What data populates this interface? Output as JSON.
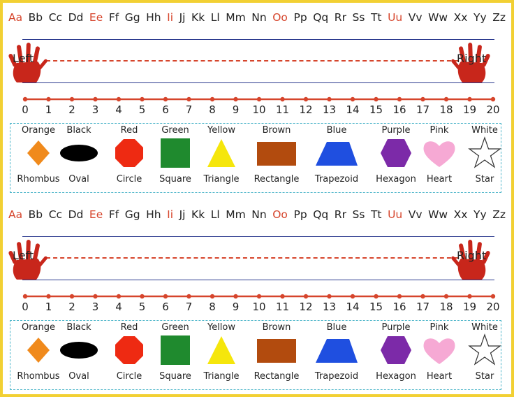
{
  "alphabet": [
    {
      "text": "Aa",
      "color": "#d6452c"
    },
    {
      "text": "Bb",
      "color": "#222222"
    },
    {
      "text": "Cc",
      "color": "#222222"
    },
    {
      "text": "Dd",
      "color": "#222222"
    },
    {
      "text": "Ee",
      "color": "#d6452c"
    },
    {
      "text": "Ff",
      "color": "#222222"
    },
    {
      "text": "Gg",
      "color": "#222222"
    },
    {
      "text": "Hh",
      "color": "#222222"
    },
    {
      "text": "Ii",
      "color": "#d6452c"
    },
    {
      "text": "Jj",
      "color": "#222222"
    },
    {
      "text": "Kk",
      "color": "#222222"
    },
    {
      "text": "Ll",
      "color": "#222222"
    },
    {
      "text": "Mm",
      "color": "#222222"
    },
    {
      "text": "Nn",
      "color": "#222222"
    },
    {
      "text": "Oo",
      "color": "#d6452c"
    },
    {
      "text": "Pp",
      "color": "#222222"
    },
    {
      "text": "Qq",
      "color": "#222222"
    },
    {
      "text": "Rr",
      "color": "#222222"
    },
    {
      "text": "Ss",
      "color": "#222222"
    },
    {
      "text": "Tt",
      "color": "#222222"
    },
    {
      "text": "Uu",
      "color": "#d6452c"
    },
    {
      "text": "Vv",
      "color": "#222222"
    },
    {
      "text": "Ww",
      "color": "#222222"
    },
    {
      "text": "Xx",
      "color": "#222222"
    },
    {
      "text": "Yy",
      "color": "#222222"
    },
    {
      "text": "Zz",
      "color": "#222222"
    }
  ],
  "hands": {
    "left": "Left",
    "right": "Right"
  },
  "number_line": [
    "0",
    "1",
    "2",
    "3",
    "4",
    "5",
    "6",
    "7",
    "8",
    "9",
    "10",
    "11",
    "12",
    "13",
    "14",
    "15",
    "16",
    "17",
    "18",
    "19",
    "20"
  ],
  "shapes": [
    {
      "color_name": "Orange",
      "shape_name": "Rhombus",
      "shape": "rhombus",
      "fill": "#f08a1c"
    },
    {
      "color_name": "Black",
      "shape_name": "Oval",
      "shape": "oval",
      "fill": "#000000"
    },
    {
      "color_name": "Red",
      "shape_name": "Circle",
      "shape": "circle",
      "fill": "#ee2a12"
    },
    {
      "color_name": "Green",
      "shape_name": "Square",
      "shape": "square",
      "fill": "#1f8a2e"
    },
    {
      "color_name": "Yellow",
      "shape_name": "Triangle",
      "shape": "triangle",
      "fill": "#f5e60c"
    },
    {
      "color_name": "Brown",
      "shape_name": "Rectangle",
      "shape": "rectangle",
      "fill": "#b24b0e"
    },
    {
      "color_name": "Blue",
      "shape_name": "Trapezoid",
      "shape": "trapezoid",
      "fill": "#1f4fe0"
    },
    {
      "color_name": "Purple",
      "shape_name": "Hexagon",
      "shape": "hexagon",
      "fill": "#7c2aa8"
    },
    {
      "color_name": "Pink",
      "shape_name": "Heart",
      "shape": "heart",
      "fill": "#f6a9d4"
    },
    {
      "color_name": "White",
      "shape_name": "Star",
      "shape": "star",
      "fill": "#ffffff"
    }
  ],
  "colors": {
    "accent_red": "#d6452c",
    "line_blue": "#2b3a8e",
    "box_border": "#4cb5c9",
    "hand_red": "#c8261b",
    "frame": "#f2d033"
  }
}
